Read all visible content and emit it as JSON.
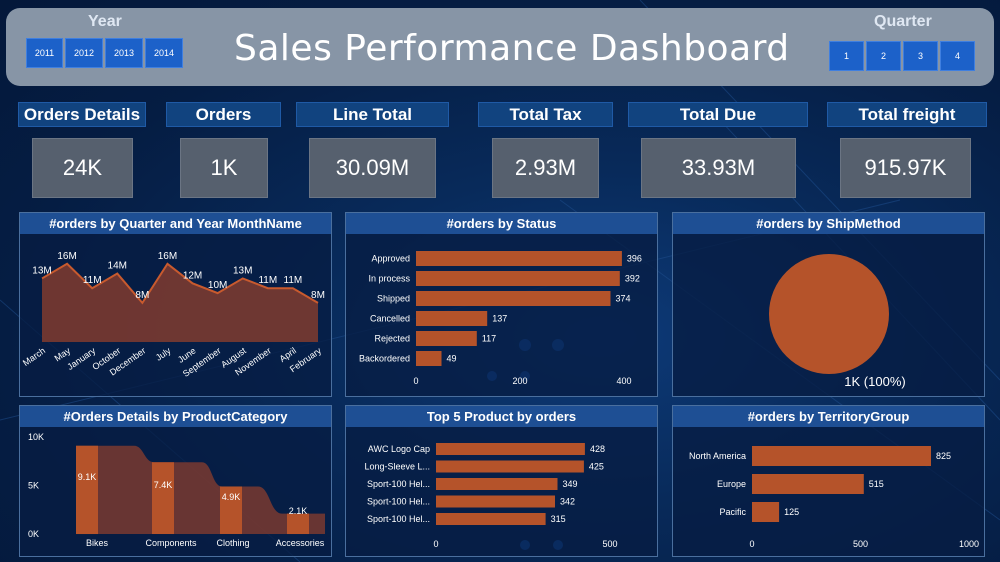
{
  "header": {
    "title": "Sales Performance Dashboard",
    "year_label": "Year",
    "years": [
      "2011",
      "2012",
      "2013",
      "2014"
    ],
    "quarter_label": "Quarter",
    "quarters": [
      "1",
      "2",
      "3",
      "4"
    ]
  },
  "kpis": [
    {
      "label": "Orders Details",
      "value": "24K"
    },
    {
      "label": "Orders",
      "value": "1K"
    },
    {
      "label": "Line Total",
      "value": "30.09M"
    },
    {
      "label": "Total Tax",
      "value": "2.93M"
    },
    {
      "label": "Total Due",
      "value": "33.93M"
    },
    {
      "label": "Total freight",
      "value": "915.97K"
    }
  ],
  "panels": {
    "monthly": "#orders by Quarter and Year MonthName",
    "status": "#orders by Status",
    "shipmethod": "#orders by ShipMethod",
    "category": "#Orders Details by ProductCategory",
    "top5": "Top 5 Product by orders",
    "territory": "#orders by TerritoryGroup"
  },
  "colors": {
    "bar": "#b5532a",
    "area": "#7a3a30",
    "line": "#c85a2e",
    "pie": "#b5532a"
  },
  "chart_data": [
    {
      "id": "monthly",
      "type": "area",
      "categories": [
        "March",
        "May",
        "January",
        "October",
        "December",
        "July",
        "June",
        "September",
        "August",
        "November",
        "April",
        "February"
      ],
      "values": [
        13,
        16,
        11,
        14,
        8,
        16,
        12,
        10,
        13,
        11,
        11,
        8
      ],
      "labels": [
        "13M",
        "16M",
        "11M",
        "14M",
        "8M",
        "16M",
        "12M",
        "10M",
        "13M",
        "11M",
        "11M",
        "8M"
      ],
      "ylim": [
        0,
        18
      ]
    },
    {
      "id": "status",
      "type": "bar",
      "orientation": "horizontal",
      "categories": [
        "Approved",
        "In process",
        "Shipped",
        "Cancelled",
        "Rejected",
        "Backordered"
      ],
      "values": [
        396,
        392,
        374,
        137,
        117,
        49
      ],
      "xticks": [
        "0",
        "200",
        "400"
      ],
      "xlim": [
        0,
        400
      ]
    },
    {
      "id": "shipmethod",
      "type": "pie",
      "values": [
        1
      ],
      "labels": [
        "1K (100%)"
      ]
    },
    {
      "id": "category",
      "type": "bar",
      "categories": [
        "Bikes",
        "Components",
        "Clothing",
        "Accessories"
      ],
      "values": [
        9100,
        7400,
        4900,
        2100
      ],
      "labels": [
        "9.1K",
        "7.4K",
        "4.9K",
        "2.1K"
      ],
      "yticks": [
        "10K",
        "5K",
        "0K"
      ],
      "ylim": [
        0,
        10000
      ]
    },
    {
      "id": "top5",
      "type": "bar",
      "orientation": "horizontal",
      "categories": [
        "AWC Logo Cap",
        "Long-Sleeve L...",
        "Sport-100 Hel...",
        "Sport-100 Hel...",
        "Sport-100 Hel..."
      ],
      "values": [
        428,
        425,
        349,
        342,
        315
      ],
      "xticks": [
        "0",
        "500"
      ],
      "xlim": [
        0,
        500
      ]
    },
    {
      "id": "territory",
      "type": "bar",
      "orientation": "horizontal",
      "categories": [
        "North America",
        "Europe",
        "Pacific"
      ],
      "values": [
        825,
        515,
        125
      ],
      "xticks": [
        "0",
        "500",
        "1000"
      ],
      "xlim": [
        0,
        1000
      ]
    }
  ]
}
